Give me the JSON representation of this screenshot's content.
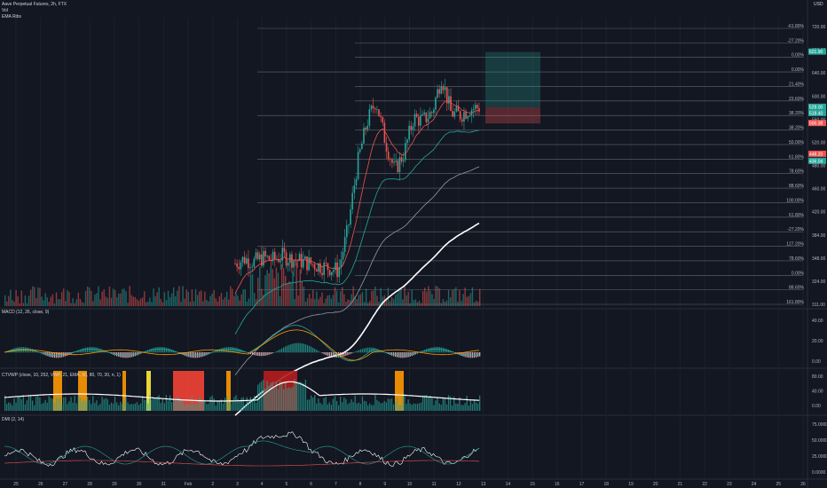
{
  "header": {
    "symbol_line": "Aave Perpetual Futures, 2h, FTX",
    "vol_label": "Vol",
    "ema_label": "EMA Ribs"
  },
  "currency": "USD",
  "panes": {
    "macd_title": "MACD (12, 26, close, 9)",
    "ctvwp_title": "CTVWP (close, 10, 252, VWP, 21, EMA, 90, 80, 70, 30, n, 1)",
    "dmi_title": "DMI (2, 14)"
  },
  "colors": {
    "background": "#131722",
    "up": "#26a69a",
    "down": "#ef5350",
    "grid": "#2a2e39",
    "level_line": "#787b86"
  },
  "chart_data": [
    {
      "type": "candlestick",
      "pane": "price",
      "x_tick_labels": [
        "25",
        "26",
        "27",
        "28",
        "29",
        "30",
        "31",
        "Feb",
        "2",
        "3",
        "4",
        "5",
        "6",
        "7",
        "8",
        "9",
        "10",
        "11",
        "12",
        "13",
        "14",
        "15",
        "16",
        "17",
        "18",
        "19",
        "20",
        "21",
        "22",
        "23",
        "24",
        "25",
        "26"
      ],
      "y_axis_labels": [
        "720.00",
        "680.00",
        "640.00",
        "600.00",
        "560.00",
        "520.00",
        "480.00",
        "460.00",
        "420.00",
        "384.00",
        "348.00",
        "324.00",
        "311.00"
      ],
      "fib_labels": [
        "-61.80%",
        "-27.20%",
        "0.00%",
        "0.00%",
        "21.40%",
        "23.60%",
        "38.20%",
        "38.20%",
        "50.00%",
        "61.80%",
        "78.60%",
        "88.60%",
        "100.00%",
        "61.80%",
        "-27.20%",
        "127.20%",
        "78.60%",
        "0.00%",
        "88.60%",
        "161.80%"
      ],
      "price_tags": [
        "621.90",
        "528.00",
        "518.40",
        "500.38",
        "448.20",
        "436.04"
      ],
      "close_values": [
        262,
        270,
        265,
        272,
        268,
        275,
        270,
        266,
        262,
        258,
        255,
        250,
        320,
        430,
        500,
        540,
        470,
        420,
        450,
        510,
        505,
        520,
        580,
        518,
        515,
        525,
        528
      ],
      "position_target": 621.9,
      "position_entry": 528.0,
      "position_stop": 500.38
    },
    {
      "type": "line",
      "pane": "macd",
      "y_axis_labels": [
        "40.00",
        "20.00",
        "0.00"
      ],
      "series": []
    },
    {
      "type": "area",
      "pane": "ctvwp",
      "y_axis_labels": [
        "80.00",
        "40.00",
        "0.00"
      ],
      "series": []
    },
    {
      "type": "line",
      "pane": "dmi",
      "y_axis_labels": [
        "75.0000",
        "50.0000",
        "25.0000",
        "0.0000"
      ],
      "series": []
    }
  ]
}
